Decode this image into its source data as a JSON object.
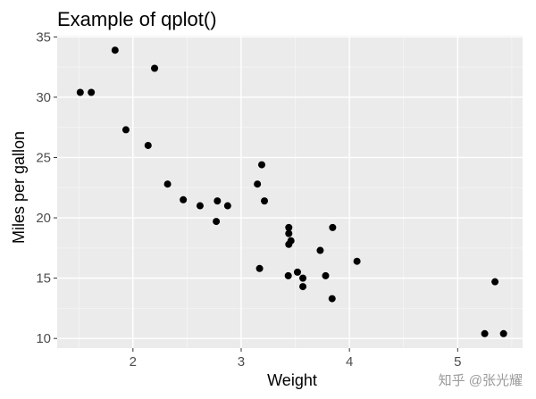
{
  "chart_data": {
    "type": "scatter",
    "title": "Example of qplot()",
    "xlabel": "Weight",
    "ylabel": "Miles per gallon",
    "xlim": [
      1.3,
      5.6
    ],
    "ylim": [
      9.2,
      35.1
    ],
    "xticks": [
      2,
      3,
      4,
      5
    ],
    "yticks": [
      10,
      15,
      20,
      25,
      30,
      35
    ],
    "grid": true,
    "legend": "none",
    "points": [
      {
        "x": 2.62,
        "y": 21.0
      },
      {
        "x": 2.875,
        "y": 21.0
      },
      {
        "x": 2.32,
        "y": 22.8
      },
      {
        "x": 3.215,
        "y": 21.4
      },
      {
        "x": 3.44,
        "y": 18.7
      },
      {
        "x": 3.46,
        "y": 18.1
      },
      {
        "x": 3.57,
        "y": 14.3
      },
      {
        "x": 3.19,
        "y": 24.4
      },
      {
        "x": 3.15,
        "y": 22.8
      },
      {
        "x": 3.44,
        "y": 19.2
      },
      {
        "x": 3.44,
        "y": 17.8
      },
      {
        "x": 4.07,
        "y": 16.4
      },
      {
        "x": 3.73,
        "y": 17.3
      },
      {
        "x": 3.78,
        "y": 15.2
      },
      {
        "x": 5.25,
        "y": 10.4
      },
      {
        "x": 5.424,
        "y": 10.4
      },
      {
        "x": 5.345,
        "y": 14.7
      },
      {
        "x": 2.2,
        "y": 32.4
      },
      {
        "x": 1.615,
        "y": 30.4
      },
      {
        "x": 1.835,
        "y": 33.9
      },
      {
        "x": 2.465,
        "y": 21.5
      },
      {
        "x": 3.52,
        "y": 15.5
      },
      {
        "x": 3.435,
        "y": 15.2
      },
      {
        "x": 3.84,
        "y": 13.3
      },
      {
        "x": 3.845,
        "y": 19.2
      },
      {
        "x": 1.935,
        "y": 27.3
      },
      {
        "x": 2.14,
        "y": 26.0
      },
      {
        "x": 1.513,
        "y": 30.4
      },
      {
        "x": 3.17,
        "y": 15.8
      },
      {
        "x": 2.77,
        "y": 19.7
      },
      {
        "x": 3.57,
        "y": 15.0
      },
      {
        "x": 2.78,
        "y": 21.4
      }
    ],
    "colors": {
      "panel": "#ebebeb",
      "grid_major": "#ffffff",
      "grid_minor": "#f5f5f5",
      "point": "#000000",
      "tick": "#333333"
    }
  },
  "watermark": "知乎 @张光耀"
}
